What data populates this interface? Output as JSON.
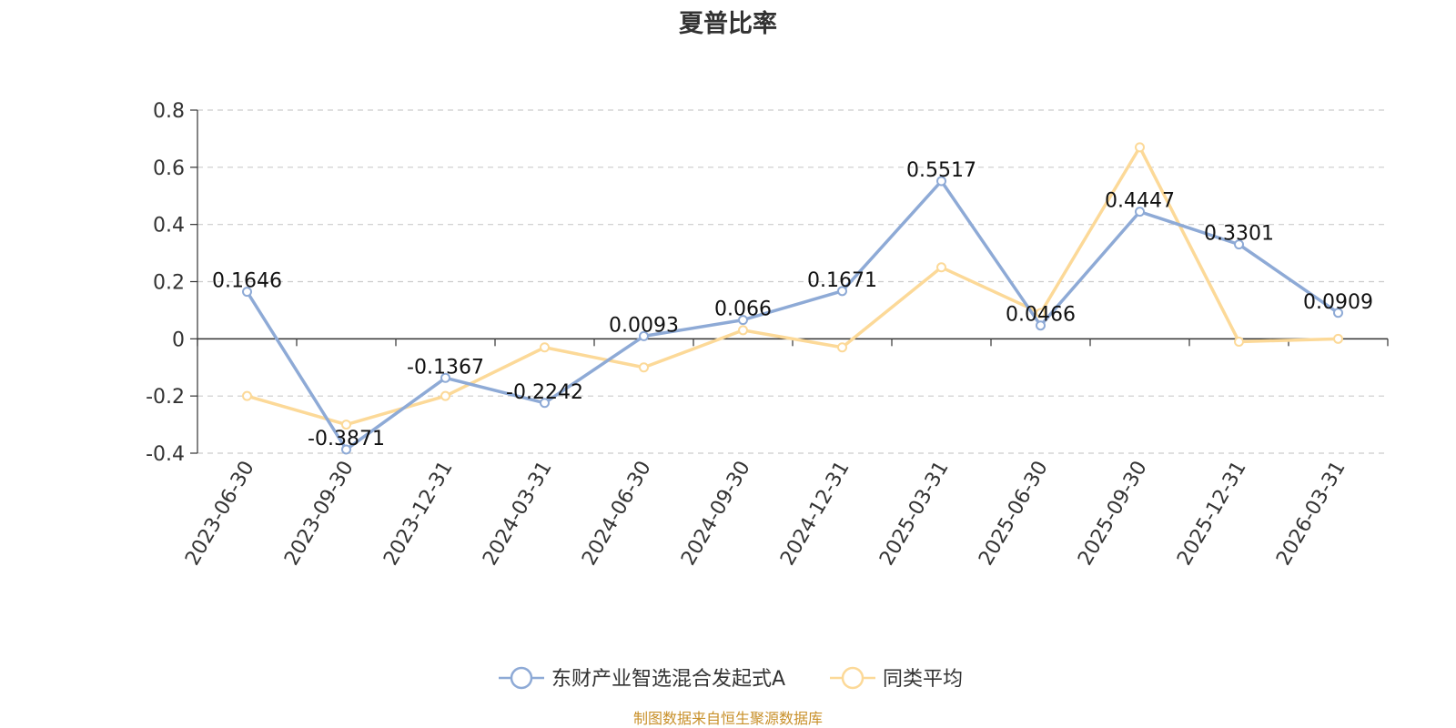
{
  "chart_data": {
    "type": "line",
    "title": "夏普比率",
    "categories": [
      "2023-06-30",
      "2023-09-30",
      "2023-12-31",
      "2024-03-31",
      "2024-06-30",
      "2024-09-30",
      "2024-12-31",
      "2025-03-31",
      "2025-06-30",
      "2025-09-30",
      "2025-12-31",
      "2026-03-31"
    ],
    "series": [
      {
        "name": "东财产业智选混合发起式A",
        "color": "#8eaad6",
        "values": [
          0.1646,
          -0.3871,
          -0.1367,
          -0.2242,
          0.0093,
          0.066,
          0.1671,
          0.5517,
          0.0466,
          0.4447,
          0.3301,
          0.0909
        ],
        "labels": [
          "0.1646",
          "-0.3871",
          "-0.1367",
          "-0.2242",
          "0.0093",
          "0.066",
          "0.1671",
          "0.5517",
          "0.0466",
          "0.4447",
          "0.3301",
          "0.0909"
        ]
      },
      {
        "name": "同类平均",
        "color": "#fcd998",
        "values": [
          -0.2,
          -0.3,
          -0.2,
          -0.03,
          -0.1,
          0.03,
          -0.03,
          0.25,
          0.09,
          0.67,
          -0.01,
          0.0
        ]
      }
    ],
    "yticks": [
      "0.8",
      "0.6",
      "0.4",
      "0.2",
      "0",
      "-0.2",
      "-0.4"
    ],
    "ylim": [
      -0.4,
      0.8
    ],
    "grid": true,
    "legend_position": "bottom-center"
  },
  "source": "制图数据来自恒生聚源数据库"
}
